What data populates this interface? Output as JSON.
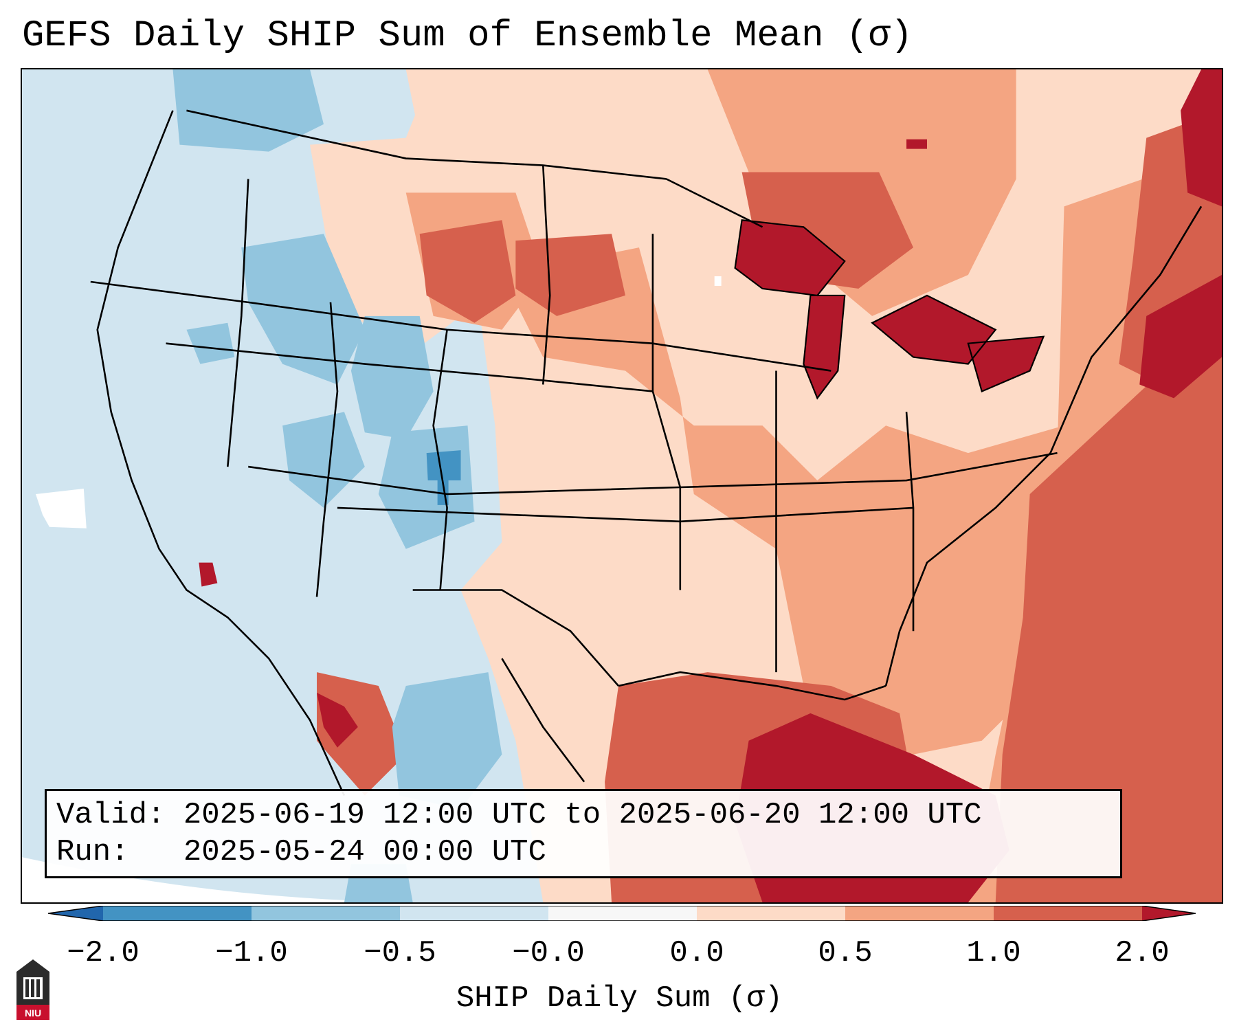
{
  "title": "GEFS Daily SHIP Sum of Ensemble Mean (σ)",
  "info": {
    "valid_label": "Valid:",
    "valid_value": "2025-06-19 12:00 UTC to 2025-06-20 12:00 UTC",
    "run_label": "Run:",
    "run_value": "2025-05-24 00:00 UTC"
  },
  "colorbar": {
    "label": "SHIP Daily Sum (σ)",
    "ticks": [
      "−2.0",
      "−1.0",
      "−0.5",
      "−0.0",
      "0.0",
      "0.5",
      "1.0",
      "2.0"
    ],
    "colors": [
      "#2166ac",
      "#4393c3",
      "#92c5de",
      "#d1e5f0",
      "#f7f7f7",
      "#fddbc7",
      "#f4a582",
      "#d6604d",
      "#b2182b"
    ]
  },
  "logo": {
    "text": "NIU"
  },
  "legend_classes": {
    "strong_negative": "#4393c3",
    "negative": "#92c5de",
    "weak_negative": "#d1e5f0",
    "weak_positive": "#fddbc7",
    "positive": "#f4a582",
    "strong_positive": "#d6604d",
    "extreme_positive": "#b2182b"
  }
}
